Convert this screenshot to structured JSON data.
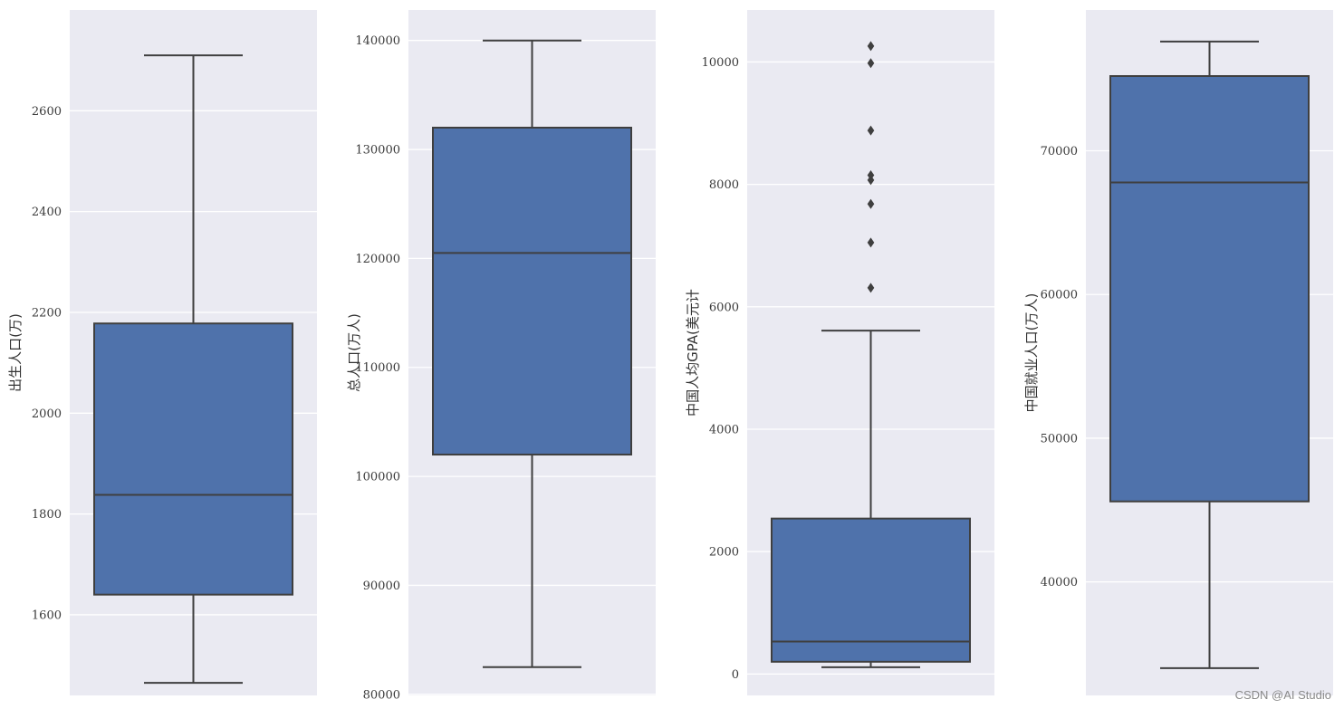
{
  "chart_data": [
    {
      "type": "box",
      "ylabel": "出生人口(万)",
      "ylim": [
        1440,
        2800
      ],
      "yticks": [
        1600,
        1800,
        2000,
        2200,
        2400,
        2600
      ],
      "ytick_labels": [
        "1600",
        "1800",
        "2000",
        "2200",
        "2400",
        "2600"
      ],
      "whisker_low": 1465,
      "q1": 1640,
      "median": 1838,
      "q3": 2178,
      "whisker_high": 2710,
      "outliers": [],
      "grid": true
    },
    {
      "type": "box",
      "ylabel": "总人口(万人)",
      "ylim": [
        79900,
        142800
      ],
      "yticks": [
        80000,
        90000,
        100000,
        110000,
        120000,
        130000,
        140000
      ],
      "ytick_labels": [
        "80000",
        "90000",
        "100000",
        "110000",
        "120000",
        "130000",
        "140000"
      ],
      "whisker_low": 82500,
      "q1": 102000,
      "median": 120500,
      "q3": 132000,
      "whisker_high": 140000,
      "outliers": [],
      "grid": true
    },
    {
      "type": "box",
      "ylabel": "中国人均GPA(美元计",
      "ylim": [
        -350,
        10850
      ],
      "yticks": [
        0,
        2000,
        4000,
        6000,
        8000,
        10000
      ],
      "ytick_labels": [
        "0",
        "2000",
        "4000",
        "6000",
        "8000",
        "10000"
      ],
      "whisker_low": 110,
      "q1": 200,
      "median": 530,
      "q3": 2540,
      "whisker_high": 5610,
      "outliers": [
        6310,
        7050,
        7680,
        8070,
        8150,
        8880,
        9980,
        10260
      ],
      "grid": true
    },
    {
      "type": "box",
      "ylabel": "中国就业人口(万人)",
      "ylim": [
        32100,
        79800
      ],
      "yticks": [
        40000,
        50000,
        60000,
        70000
      ],
      "ytick_labels": [
        "40000",
        "50000",
        "60000",
        "70000"
      ],
      "whisker_low": 34000,
      "q1": 45600,
      "median": 67800,
      "q3": 75200,
      "whisker_high": 77600,
      "outliers": [],
      "grid": true
    }
  ],
  "colors": {
    "background": "#eaeaf2",
    "grid": "#ffffff",
    "box_fill": "#4f72ab",
    "line": "#3f3f3f"
  },
  "watermark": "CSDN @AI Studio"
}
